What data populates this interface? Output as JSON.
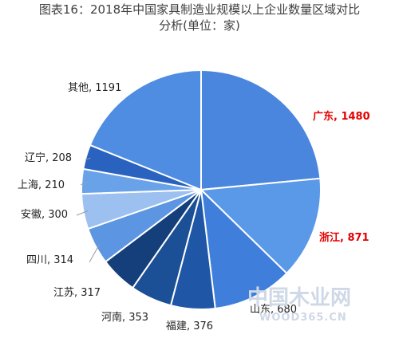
{
  "title_line1": "图表16：2018年中国家具制造业规模以上企业数量区域对比",
  "title_line2": "分析(单位：家)",
  "watermark": {
    "main": "中国木业网",
    "sub": "WOOD365.CN"
  },
  "chart_data": {
    "type": "pie",
    "title": "图表16：2018年中国家具制造业规模以上企业数量区域对比分析(单位：家)",
    "unit": "家",
    "start_angle_deg": 0,
    "direction": "clockwise",
    "slices": [
      {
        "label": "广东",
        "value": 1480,
        "text": "广东, 1480",
        "color": "#4a86dd",
        "highlight": true
      },
      {
        "label": "浙江",
        "value": 871,
        "text": "浙江, 871",
        "color": "#5a98e8",
        "highlight": true
      },
      {
        "label": "山东",
        "value": 680,
        "text": "山东, 680",
        "color": "#3f7fdb",
        "highlight": false
      },
      {
        "label": "福建",
        "value": 376,
        "text": "福建, 376",
        "color": "#1f56a6",
        "highlight": false
      },
      {
        "label": "河南",
        "value": 353,
        "text": "河南, 353",
        "color": "#1b4f96",
        "highlight": false
      },
      {
        "label": "江苏",
        "value": 317,
        "text": "江苏, 317",
        "color": "#153f7a",
        "highlight": false
      },
      {
        "label": "四川",
        "value": 314,
        "text": "四川, 314",
        "color": "#5c95e2",
        "highlight": false
      },
      {
        "label": "安徽",
        "value": 300,
        "text": "安徽, 300",
        "color": "#9cc0f0",
        "highlight": false
      },
      {
        "label": "上海",
        "value": 210,
        "text": "上海, 210",
        "color": "#6aa2ea",
        "highlight": false
      },
      {
        "label": "辽宁",
        "value": 208,
        "text": "辽宁, 208",
        "color": "#2a62c0",
        "highlight": false
      },
      {
        "label": "其他",
        "value": 1191,
        "text": "其他, 1191",
        "color": "#4f8de3",
        "highlight": false
      }
    ]
  }
}
